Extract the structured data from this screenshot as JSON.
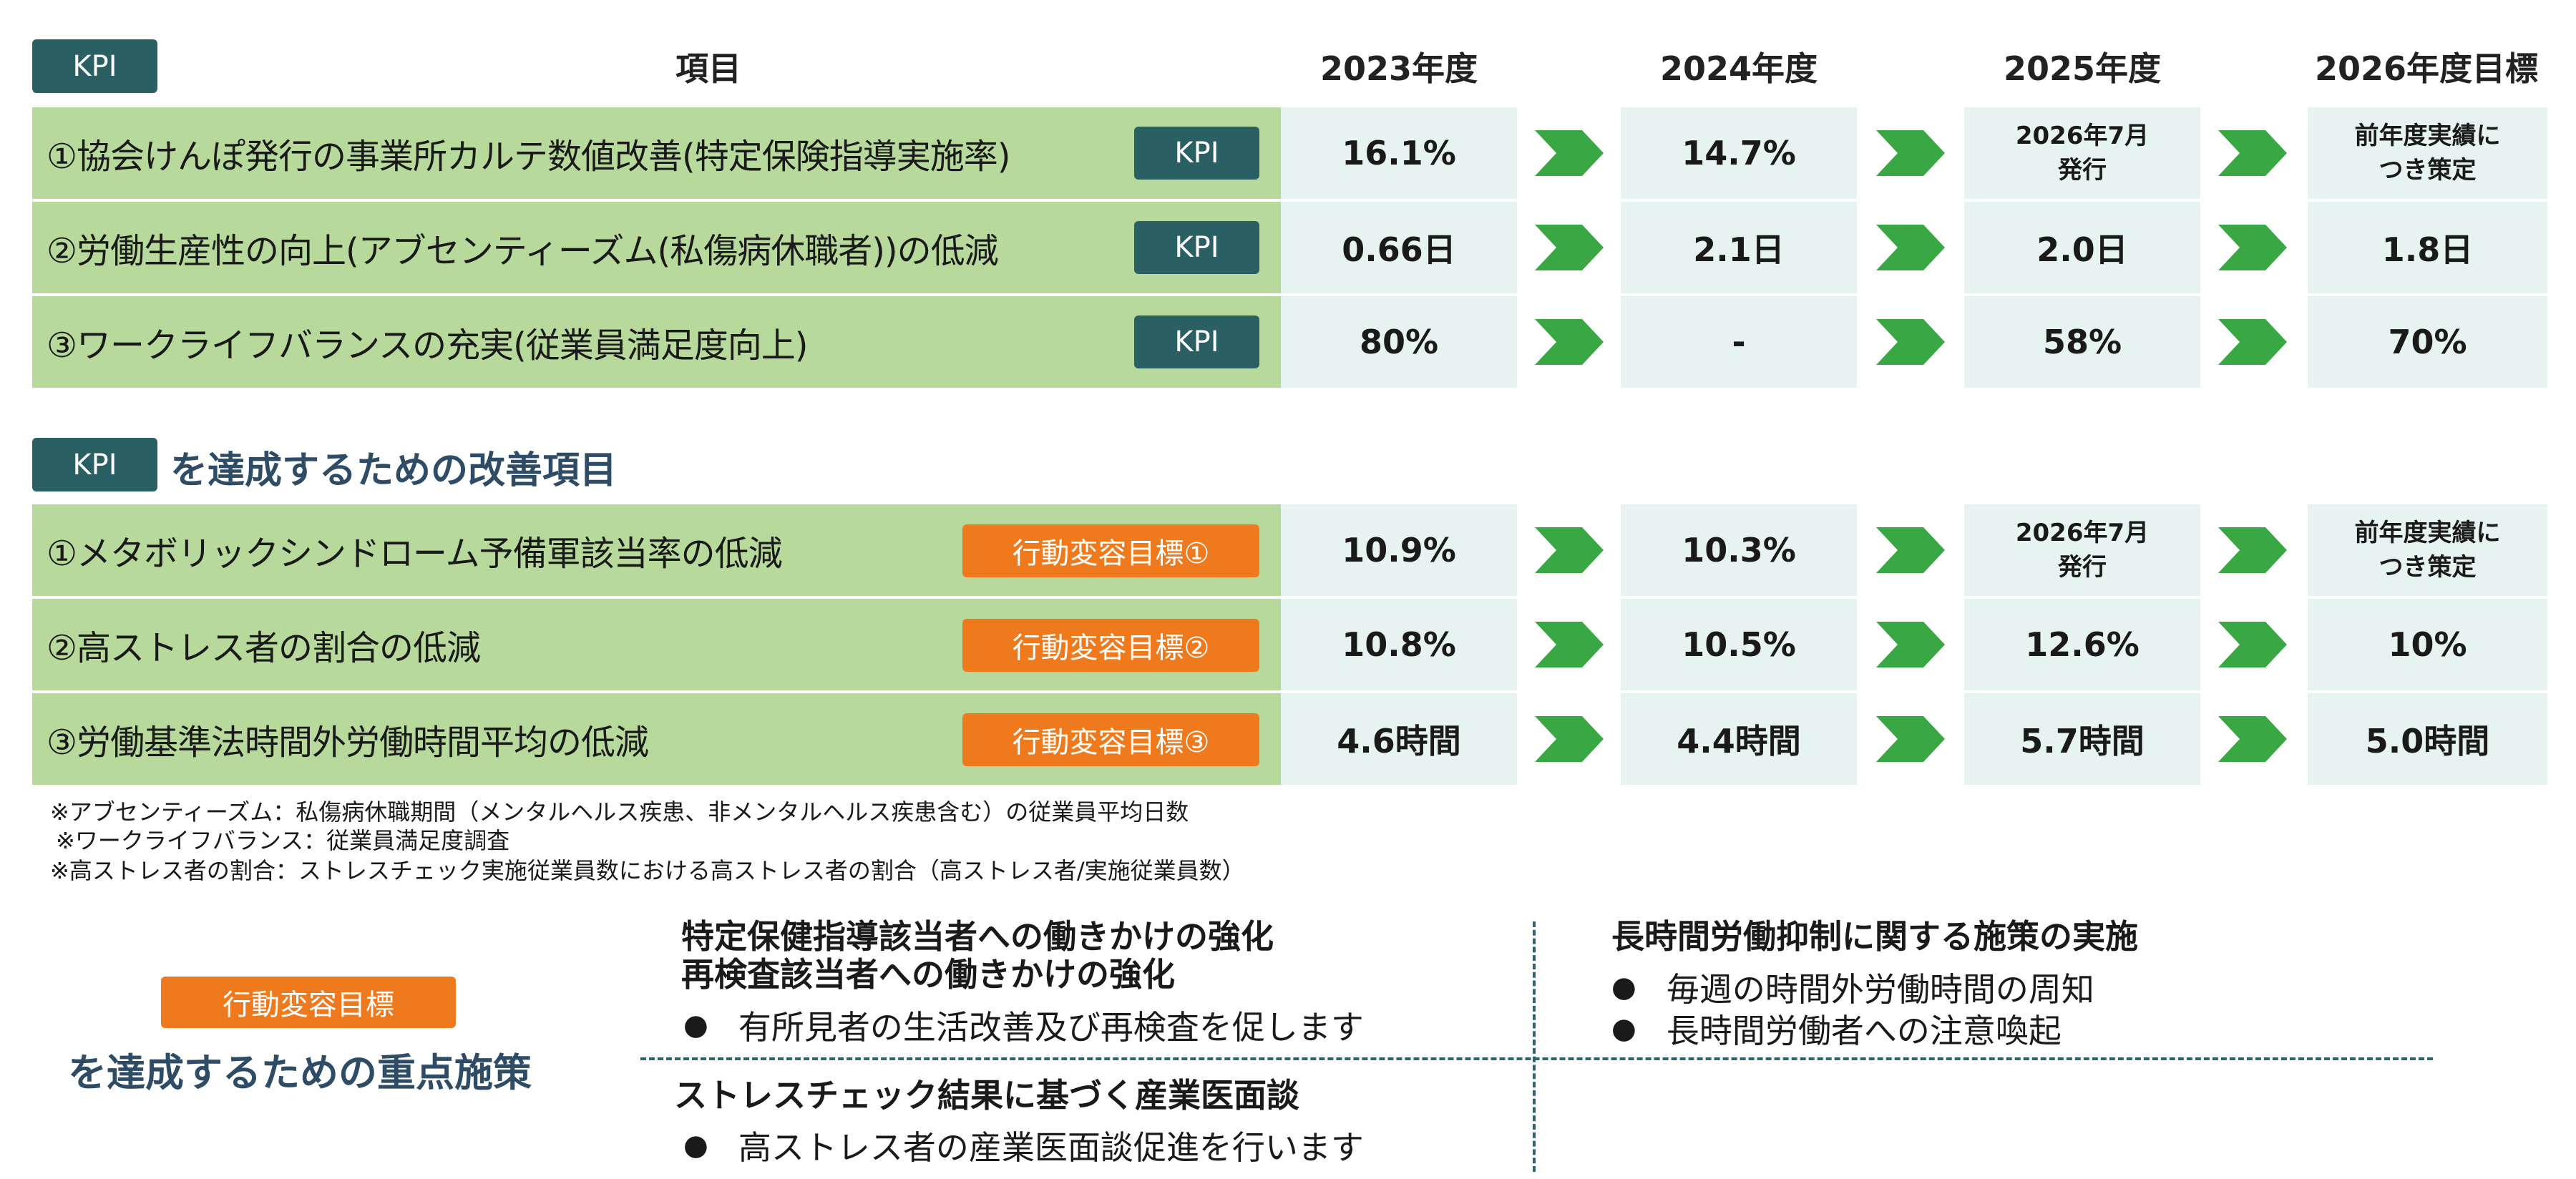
{
  "header": {
    "kpi_tag": "KPI",
    "item_col": "項目",
    "years": [
      "2023年度",
      "2024年度",
      "2025年度",
      "2026年度目標"
    ]
  },
  "kpi_rows": [
    {
      "label": "①協会けんぽ発行の事業所カルテ数値改善(特定保険指導実施率)",
      "tag": "KPI",
      "values": [
        "16.1%",
        "14.7%",
        "2026年7月\n発行",
        "前年度実績に\nつき策定"
      ]
    },
    {
      "label": "②労働生産性の向上(アブセンティーズム(私傷病休職者))の低減",
      "tag": "KPI",
      "values": [
        "0.66日",
        "2.1日",
        "2.0日",
        "1.8日"
      ]
    },
    {
      "label": "③ワークライフバランスの充実(従業員満足度向上)",
      "tag": "KPI",
      "values": [
        "80%",
        "-",
        "58%",
        "70%"
      ]
    }
  ],
  "improvement": {
    "tag": "KPI",
    "title": "を達成するための改善項目"
  },
  "improvement_rows": [
    {
      "label": "①メタボリックシンドローム予備軍該当率の低減",
      "tag": "行動変容目標①",
      "values": [
        "10.9%",
        "10.3%",
        "2026年7月\n発行",
        "前年度実績に\nつき策定"
      ]
    },
    {
      "label": "②高ストレス者の割合の低減",
      "tag": "行動変容目標②",
      "values": [
        "10.8%",
        "10.5%",
        "12.6%",
        "10%"
      ]
    },
    {
      "label": "③労働基準法時間外労働時間平均の低減",
      "tag": "行動変容目標③",
      "values": [
        "4.6時間",
        "4.4時間",
        "5.7時間",
        "5.0時間"
      ]
    }
  ],
  "notes": [
    "※アブセンティーズム：私傷病休職期間（メンタルヘルス疾患、非メンタルヘルス疾患含む）の従業員平均日数",
    "※ワークライフバランス：従業員満足度調査",
    "※高ストレス者の割合：ストレスチェック実施従業員数における高ストレス者の割合（高ストレス者/実施従業員数）"
  ],
  "measures": {
    "tag": "行動変容目標",
    "title": "を達成するための重点施策",
    "block1": {
      "heading1": "特定保健指導該当者への働きかけの強化",
      "heading2": "再検査該当者への働きかけの強化",
      "bullet": "有所見者の生活改善及び再検査を促します"
    },
    "block2": {
      "heading": "長時間労働抑制に関する施策の実施",
      "bullets": [
        "毎週の時間外労働時間の周知",
        "長時間労働者への注意喚起"
      ]
    },
    "block3": {
      "heading": "ストレスチェック結果に基づく産業医面談",
      "bullet": "高ストレス者の産業医面談促進を行います"
    },
    "bullet_symbol": "●"
  },
  "colors": {
    "kpi_tag": "#2a5f63",
    "action_tag": "#ef7a1e",
    "label_bg": "#b7d99b",
    "value_bg": "#e6f3f1",
    "arrow": "#3aa745",
    "title_text": "#2f4c66",
    "divider": "#2d6470"
  },
  "icons": {
    "arrow": "chevron-right-arrow-icon"
  }
}
